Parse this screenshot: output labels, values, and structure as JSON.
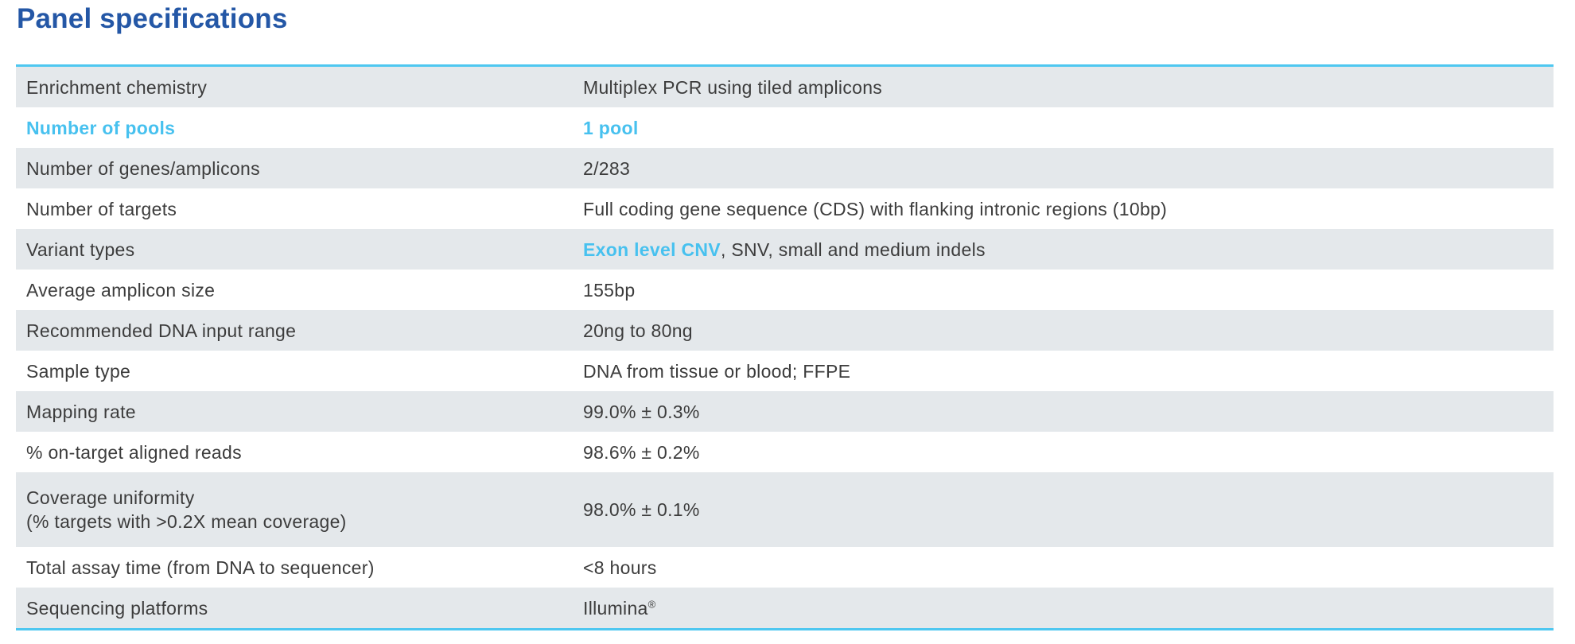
{
  "page": {
    "title": "Panel specifications"
  },
  "colors": {
    "title_blue": "#2457a6",
    "accent_blue": "#47c1ef",
    "border_blue": "#4ec7f0",
    "row_shade_gray": "#e4e8eb",
    "body_text": "#3c3c3c"
  },
  "rows": [
    {
      "label": "Enrichment chemistry",
      "value": "Multiplex PCR using tiled amplicons"
    },
    {
      "label": "Number of pools",
      "value": "1 pool"
    },
    {
      "label": "Number of genes/amplicons",
      "value": "2/283"
    },
    {
      "label": "Number of targets",
      "value": "Full coding gene sequence (CDS) with flanking intronic regions (10bp)"
    },
    {
      "label": "Variant types",
      "value_highlight": "Exon level CNV",
      "value_rest": ", SNV, small and medium indels"
    },
    {
      "label": "Average amplicon size",
      "value": "155bp"
    },
    {
      "label": "Recommended DNA input range",
      "value": "20ng to 80ng"
    },
    {
      "label": "Sample type",
      "value": "DNA from tissue or blood; FFPE"
    },
    {
      "label": "Mapping rate",
      "value": "99.0% ± 0.3%"
    },
    {
      "label": "% on-target aligned reads",
      "value": "98.6% ± 0.2%"
    },
    {
      "label": "Coverage uniformity",
      "label_note": "(% targets with >0.2X mean coverage)",
      "value": "98.0% ± 0.1%"
    },
    {
      "label": "Total assay time (from DNA to sequencer)",
      "value": "<8 hours"
    },
    {
      "label": "Sequencing platforms",
      "value": "Illumina",
      "value_suffix": "®"
    }
  ]
}
